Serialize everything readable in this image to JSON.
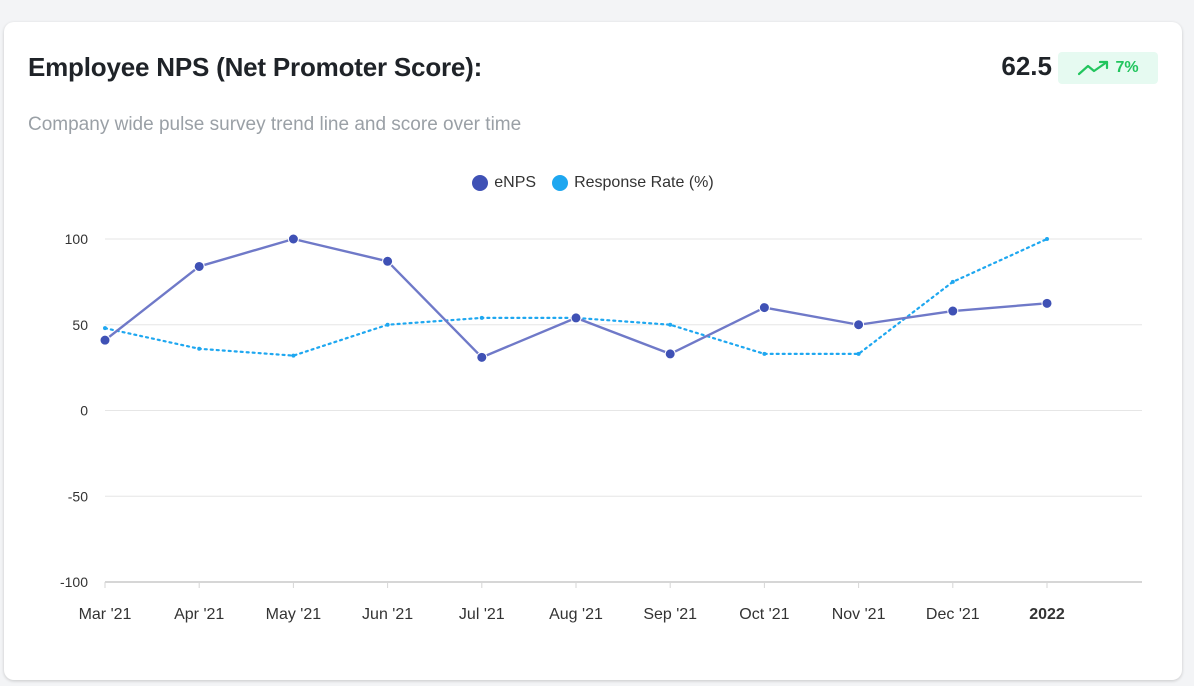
{
  "card": {
    "title": "Employee NPS (Net Promoter Score):",
    "score": "62.5",
    "change": "7%",
    "change_icon": "trending-up-icon",
    "subtitle": "Company wide pulse survey trend line and score over time"
  },
  "colors": {
    "enps": "#3f51b5",
    "enps_line": "#6f79c8",
    "response": "#1ea7f0",
    "grid": "#e6e6e6",
    "positive": "#22c55e"
  },
  "chart_data": {
    "type": "line",
    "title": "",
    "xlabel": "",
    "ylabel": "",
    "categories": [
      "Mar '21",
      "Apr '21",
      "May '21",
      "Jun '21",
      "Jul '21",
      "Aug '21",
      "Sep '21",
      "Oct '21",
      "Nov '21",
      "Dec '21",
      "2022"
    ],
    "ylim": [
      -100,
      100
    ],
    "yticks": [
      100,
      50,
      0,
      -50,
      -100
    ],
    "legend_position": "top-center",
    "series": [
      {
        "name": "eNPS",
        "style": "solid",
        "values": [
          41,
          84,
          100,
          87,
          31,
          54,
          33,
          60,
          50,
          58,
          62.5
        ]
      },
      {
        "name": "Response Rate (%)",
        "style": "dotted",
        "values": [
          48,
          36,
          32,
          50,
          54,
          54,
          50,
          33,
          33,
          75,
          100
        ]
      }
    ]
  }
}
